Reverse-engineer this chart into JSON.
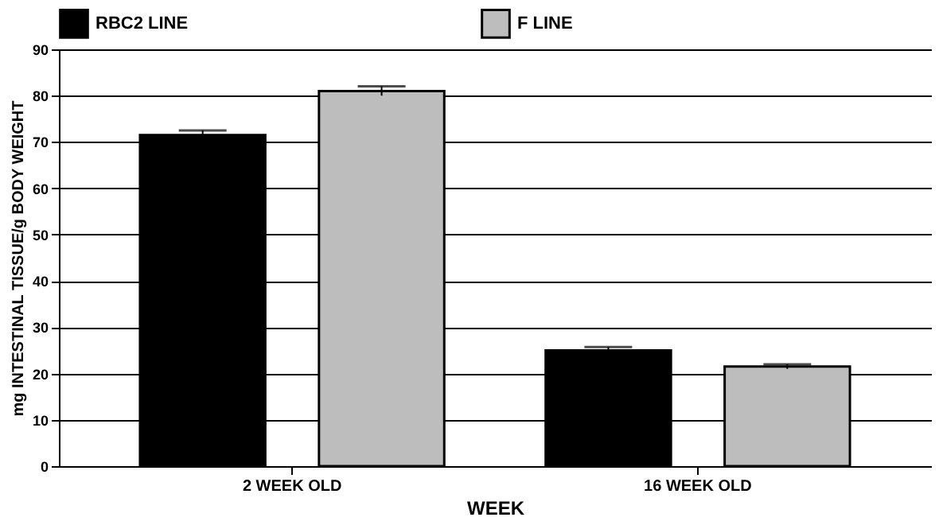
{
  "chart_data": {
    "type": "bar",
    "xlabel": "WEEK",
    "ylabel": "mg INTESTINAL TISSUE/g BODY WEIGHT",
    "categories": [
      "2 WEEK OLD",
      "16 WEEK OLD"
    ],
    "series": [
      {
        "name": "RBC2 LINE",
        "color": "#000000",
        "values": [
          71.5,
          25
        ],
        "errors": [
          1,
          0.7
        ]
      },
      {
        "name": "F LINE",
        "color": "#bdbdbd",
        "values": [
          81,
          21.5
        ],
        "errors": [
          1,
          0.5
        ]
      }
    ],
    "ylim": [
      0,
      90
    ],
    "yticks": [
      0,
      10,
      20,
      30,
      40,
      50,
      60,
      70,
      80,
      90
    ],
    "grid": "y",
    "legend": "top"
  }
}
